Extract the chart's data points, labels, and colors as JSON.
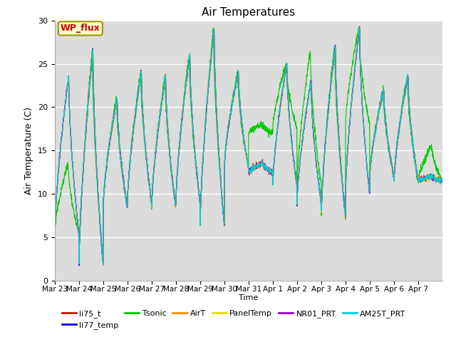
{
  "title": "Air Temperatures",
  "xlabel": "Time",
  "ylabel": "Air Temperature (C)",
  "ylim": [
    0,
    30
  ],
  "n_days": 16,
  "x_ticks": [
    "Mar 23",
    "Mar 24",
    "Mar 25",
    "Mar 26",
    "Mar 27",
    "Mar 28",
    "Mar 29",
    "Mar 30",
    "Mar 31",
    "Apr 1",
    "Apr 2",
    "Apr 3",
    "Apr 4",
    "Apr 5",
    "Apr 6",
    "Apr 7"
  ],
  "yticks": [
    0,
    5,
    10,
    15,
    20,
    25,
    30
  ],
  "bg_color": "#dcdcdc",
  "series": [
    {
      "name": "li75_t",
      "color": "#dd0000"
    },
    {
      "name": "li77_temp",
      "color": "#0000dd"
    },
    {
      "name": "Tsonic",
      "color": "#00cc00"
    },
    {
      "name": "AirT",
      "color": "#ff8800"
    },
    {
      "name": "PanelTemp",
      "color": "#dddd00"
    },
    {
      "name": "NR01_PRT",
      "color": "#9900cc"
    },
    {
      "name": "AM25T_PRT",
      "color": "#00cccc"
    }
  ],
  "wp_flux_label": "WP_flux",
  "wp_flux_color": "#cc0000",
  "wp_flux_bg": "#ffffcc",
  "wp_flux_border": "#999900",
  "day_peaks": [
    23.5,
    26.5,
    21.0,
    24.0,
    23.5,
    26.0,
    29.0,
    24.0,
    13.5,
    25.0,
    23.0,
    27.0,
    29.0,
    22.0,
    23.5,
    12.0
  ],
  "day_mins": [
    5.5,
    2.0,
    8.5,
    9.0,
    8.5,
    9.0,
    6.5,
    13.0,
    12.5,
    11.0,
    9.0,
    7.5,
    10.0,
    12.0,
    11.5,
    11.5
  ],
  "tsonic_peaks": [
    13.5,
    26.5,
    21.0,
    24.0,
    23.5,
    26.0,
    29.0,
    24.0,
    18.0,
    25.0,
    26.5,
    27.0,
    29.0,
    22.0,
    23.5,
    15.5
  ],
  "tsonic_mins": [
    5.5,
    2.0,
    8.5,
    9.0,
    8.5,
    9.0,
    6.5,
    13.0,
    17.0,
    17.5,
    11.0,
    7.5,
    18.0,
    12.0,
    11.5,
    11.5
  ]
}
